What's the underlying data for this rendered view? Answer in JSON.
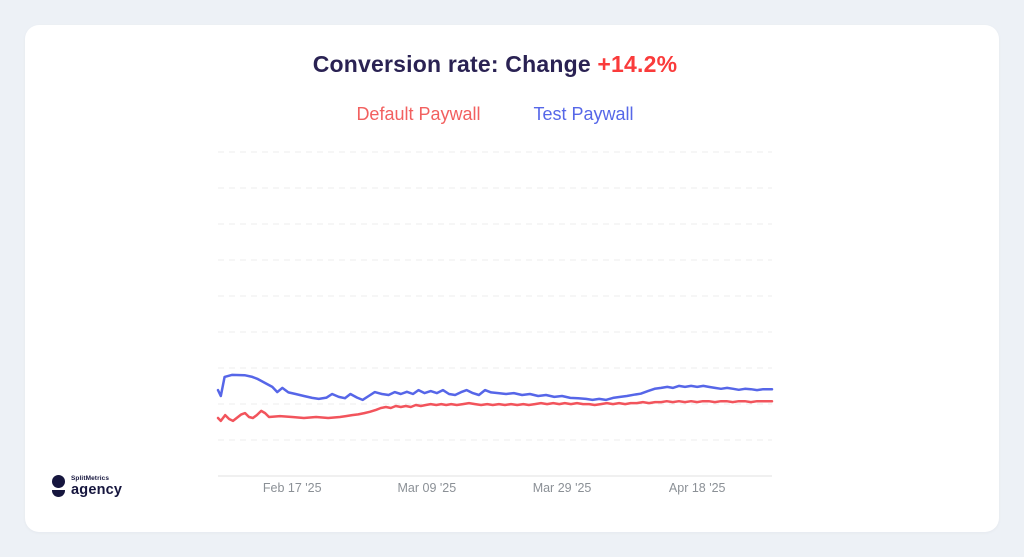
{
  "page": {
    "background": "#EDF1F6",
    "card_background": "#FFFFFF"
  },
  "header": {
    "title_prefix": "Conversion rate: Change ",
    "change_value": "+14.2%",
    "title_color": "#2A2253",
    "change_color": "#FA3B3B"
  },
  "legend": {
    "items": [
      {
        "label": "Default Paywall",
        "color": "#F2605F"
      },
      {
        "label": "Test Paywall",
        "color": "#5667E8"
      }
    ]
  },
  "chart_data": {
    "type": "line",
    "title": "Conversion rate: Change +14.2%",
    "xlabel": "",
    "ylabel": "",
    "x_tick_labels": [
      "Feb 17 '25",
      "Mar 09 '25",
      "Mar 29 '25",
      "Apr 18 '25"
    ],
    "x_tick_positions": [
      0.134,
      0.377,
      0.621,
      0.865
    ],
    "y_axis": {
      "labels_visible": false,
      "gridlines": 9,
      "grid_style": "dashed"
    },
    "grid_color": "#ECECEC",
    "axis_color": "#E2E2E2",
    "tick_label_color": "#8B9096",
    "line_width": 2.5,
    "series": [
      {
        "name": "Default Paywall",
        "color": "#F2545C",
        "points": [
          [
            0.0,
            0.179
          ],
          [
            0.005,
            0.17
          ],
          [
            0.013,
            0.188
          ],
          [
            0.02,
            0.176
          ],
          [
            0.027,
            0.17
          ],
          [
            0.042,
            0.19
          ],
          [
            0.049,
            0.194
          ],
          [
            0.056,
            0.182
          ],
          [
            0.063,
            0.179
          ],
          [
            0.07,
            0.188
          ],
          [
            0.078,
            0.201
          ],
          [
            0.085,
            0.194
          ],
          [
            0.092,
            0.182
          ],
          [
            0.112,
            0.185
          ],
          [
            0.134,
            0.182
          ],
          [
            0.155,
            0.179
          ],
          [
            0.177,
            0.182
          ],
          [
            0.199,
            0.179
          ],
          [
            0.22,
            0.182
          ],
          [
            0.231,
            0.185
          ],
          [
            0.242,
            0.188
          ],
          [
            0.253,
            0.19
          ],
          [
            0.264,
            0.194
          ],
          [
            0.274,
            0.198
          ],
          [
            0.285,
            0.204
          ],
          [
            0.294,
            0.21
          ],
          [
            0.303,
            0.213
          ],
          [
            0.312,
            0.21
          ],
          [
            0.321,
            0.216
          ],
          [
            0.33,
            0.213
          ],
          [
            0.339,
            0.216
          ],
          [
            0.348,
            0.213
          ],
          [
            0.357,
            0.219
          ],
          [
            0.366,
            0.216
          ],
          [
            0.375,
            0.219
          ],
          [
            0.384,
            0.222
          ],
          [
            0.394,
            0.219
          ],
          [
            0.403,
            0.222
          ],
          [
            0.412,
            0.219
          ],
          [
            0.421,
            0.222
          ],
          [
            0.431,
            0.219
          ],
          [
            0.442,
            0.222
          ],
          [
            0.453,
            0.225
          ],
          [
            0.464,
            0.222
          ],
          [
            0.475,
            0.219
          ],
          [
            0.486,
            0.222
          ],
          [
            0.496,
            0.219
          ],
          [
            0.507,
            0.222
          ],
          [
            0.518,
            0.219
          ],
          [
            0.529,
            0.222
          ],
          [
            0.54,
            0.219
          ],
          [
            0.551,
            0.222
          ],
          [
            0.561,
            0.219
          ],
          [
            0.572,
            0.222
          ],
          [
            0.583,
            0.225
          ],
          [
            0.594,
            0.222
          ],
          [
            0.605,
            0.225
          ],
          [
            0.616,
            0.222
          ],
          [
            0.626,
            0.225
          ],
          [
            0.637,
            0.222
          ],
          [
            0.648,
            0.225
          ],
          [
            0.659,
            0.222
          ],
          [
            0.67,
            0.222
          ],
          [
            0.68,
            0.219
          ],
          [
            0.691,
            0.222
          ],
          [
            0.702,
            0.225
          ],
          [
            0.713,
            0.222
          ],
          [
            0.724,
            0.225
          ],
          [
            0.735,
            0.222
          ],
          [
            0.745,
            0.225
          ],
          [
            0.756,
            0.225
          ],
          [
            0.767,
            0.228
          ],
          [
            0.778,
            0.225
          ],
          [
            0.789,
            0.228
          ],
          [
            0.8,
            0.228
          ],
          [
            0.81,
            0.231
          ],
          [
            0.821,
            0.228
          ],
          [
            0.832,
            0.231
          ],
          [
            0.843,
            0.228
          ],
          [
            0.854,
            0.231
          ],
          [
            0.865,
            0.228
          ],
          [
            0.875,
            0.231
          ],
          [
            0.886,
            0.231
          ],
          [
            0.897,
            0.228
          ],
          [
            0.908,
            0.231
          ],
          [
            0.918,
            0.231
          ],
          [
            0.929,
            0.228
          ],
          [
            0.94,
            0.231
          ],
          [
            0.951,
            0.231
          ],
          [
            0.962,
            0.228
          ],
          [
            0.973,
            0.231
          ],
          [
            0.984,
            0.231
          ],
          [
            1.0,
            0.231
          ]
        ]
      },
      {
        "name": "Test Paywall",
        "color": "#5666E8",
        "points": [
          [
            0.0,
            0.265
          ],
          [
            0.005,
            0.247
          ],
          [
            0.012,
            0.306
          ],
          [
            0.025,
            0.312
          ],
          [
            0.048,
            0.311
          ],
          [
            0.062,
            0.306
          ],
          [
            0.072,
            0.299
          ],
          [
            0.085,
            0.287
          ],
          [
            0.098,
            0.275
          ],
          [
            0.107,
            0.259
          ],
          [
            0.116,
            0.272
          ],
          [
            0.127,
            0.258
          ],
          [
            0.14,
            0.253
          ],
          [
            0.155,
            0.247
          ],
          [
            0.17,
            0.241
          ],
          [
            0.182,
            0.238
          ],
          [
            0.196,
            0.242
          ],
          [
            0.206,
            0.253
          ],
          [
            0.218,
            0.244
          ],
          [
            0.229,
            0.24
          ],
          [
            0.239,
            0.253
          ],
          [
            0.251,
            0.242
          ],
          [
            0.261,
            0.235
          ],
          [
            0.272,
            0.247
          ],
          [
            0.283,
            0.259
          ],
          [
            0.296,
            0.253
          ],
          [
            0.308,
            0.25
          ],
          [
            0.319,
            0.259
          ],
          [
            0.33,
            0.253
          ],
          [
            0.341,
            0.26
          ],
          [
            0.352,
            0.253
          ],
          [
            0.362,
            0.265
          ],
          [
            0.373,
            0.256
          ],
          [
            0.384,
            0.262
          ],
          [
            0.395,
            0.256
          ],
          [
            0.406,
            0.265
          ],
          [
            0.417,
            0.253
          ],
          [
            0.428,
            0.25
          ],
          [
            0.439,
            0.259
          ],
          [
            0.449,
            0.265
          ],
          [
            0.46,
            0.256
          ],
          [
            0.471,
            0.25
          ],
          [
            0.482,
            0.265
          ],
          [
            0.493,
            0.258
          ],
          [
            0.506,
            0.256
          ],
          [
            0.52,
            0.253
          ],
          [
            0.534,
            0.256
          ],
          [
            0.549,
            0.25
          ],
          [
            0.563,
            0.253
          ],
          [
            0.578,
            0.247
          ],
          [
            0.592,
            0.25
          ],
          [
            0.607,
            0.244
          ],
          [
            0.621,
            0.247
          ],
          [
            0.636,
            0.241
          ],
          [
            0.65,
            0.24
          ],
          [
            0.664,
            0.238
          ],
          [
            0.676,
            0.235
          ],
          [
            0.688,
            0.238
          ],
          [
            0.7,
            0.235
          ],
          [
            0.713,
            0.241
          ],
          [
            0.726,
            0.244
          ],
          [
            0.738,
            0.247
          ],
          [
            0.751,
            0.251
          ],
          [
            0.763,
            0.254
          ],
          [
            0.776,
            0.262
          ],
          [
            0.788,
            0.269
          ],
          [
            0.8,
            0.272
          ],
          [
            0.811,
            0.275
          ],
          [
            0.821,
            0.272
          ],
          [
            0.832,
            0.278
          ],
          [
            0.843,
            0.275
          ],
          [
            0.854,
            0.278
          ],
          [
            0.865,
            0.275
          ],
          [
            0.876,
            0.278
          ],
          [
            0.886,
            0.275
          ],
          [
            0.897,
            0.272
          ],
          [
            0.908,
            0.269
          ],
          [
            0.919,
            0.272
          ],
          [
            0.93,
            0.269
          ],
          [
            0.94,
            0.266
          ],
          [
            0.951,
            0.269
          ],
          [
            0.962,
            0.268
          ],
          [
            0.973,
            0.265
          ],
          [
            0.984,
            0.268
          ],
          [
            1.0,
            0.268
          ]
        ]
      }
    ]
  },
  "logo": {
    "brand": "SplitMetrics",
    "sub": "agency",
    "color": "#16163E"
  }
}
